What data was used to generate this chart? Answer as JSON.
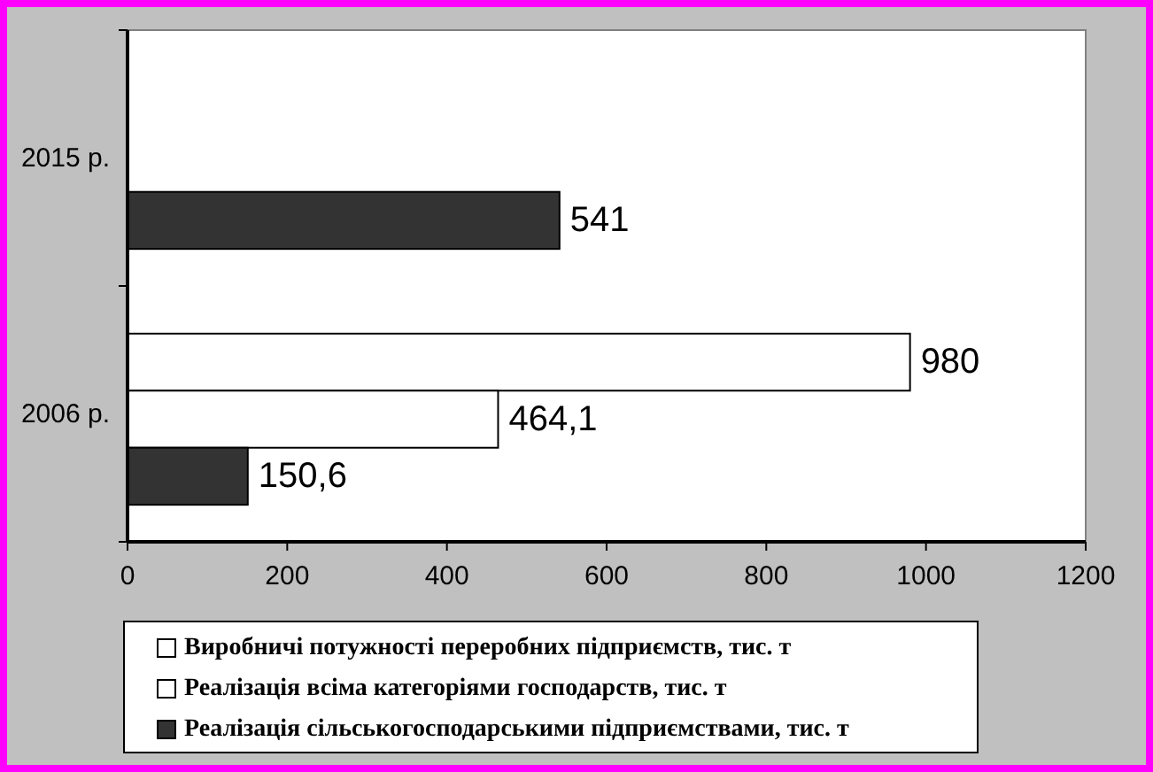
{
  "chart_data": {
    "type": "bar",
    "orientation": "horizontal",
    "categories": [
      "2015 р.",
      "2006 р."
    ],
    "series": [
      {
        "name": "Виробничі потужності переробних підприємств, тис. т",
        "color": "#ffffff",
        "values": [
          null,
          980
        ],
        "value_labels": [
          null,
          "980"
        ]
      },
      {
        "name": "Реалізація всіма категоріями господарств, тис. т",
        "color": "#ffffff",
        "values": [
          null,
          464.1
        ],
        "value_labels": [
          null,
          "464,1"
        ]
      },
      {
        "name": "Реалізація сільськогосподарськими підприємствами, тис. т",
        "color": "#333333",
        "values": [
          541,
          150.6
        ],
        "value_labels": [
          "541",
          "150,6"
        ]
      }
    ],
    "xlim": [
      0,
      1200
    ],
    "xticks": [
      0,
      200,
      400,
      600,
      800,
      1000,
      1200
    ],
    "grid": false,
    "legend": "bottom"
  }
}
